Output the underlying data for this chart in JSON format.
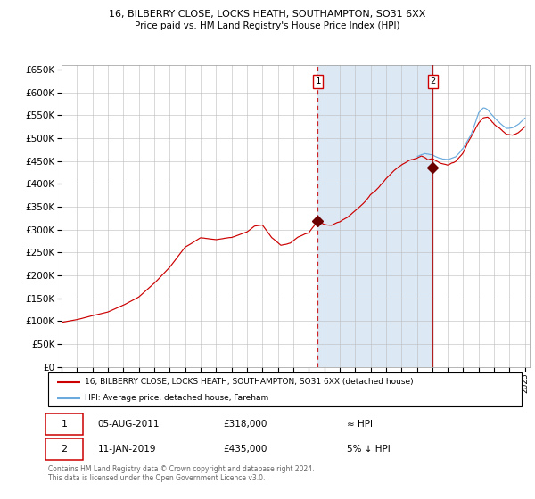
{
  "title_line1": "16, BILBERRY CLOSE, LOCKS HEATH, SOUTHAMPTON, SO31 6XX",
  "title_line2": "Price paid vs. HM Land Registry's House Price Index (HPI)",
  "legend_label1": "16, BILBERRY CLOSE, LOCKS HEATH, SOUTHAMPTON, SO31 6XX (detached house)",
  "legend_label2": "HPI: Average price, detached house, Fareham",
  "annotation1_date": "05-AUG-2011",
  "annotation1_price": "£318,000",
  "annotation1_hpi": "≈ HPI",
  "annotation2_date": "11-JAN-2019",
  "annotation2_price": "£435,000",
  "annotation2_hpi": "5% ↓ HPI",
  "footer_line1": "Contains HM Land Registry data © Crown copyright and database right 2024.",
  "footer_line2": "This data is licensed under the Open Government Licence v3.0.",
  "red_color": "#cc0000",
  "blue_color": "#6aaadd",
  "bg_shaded": "#dce9f5",
  "grid_color": "#bbbbbb",
  "ylim_min": 0,
  "ylim_max": 660000,
  "sale1_date_num": 2011.59,
  "sale1_price": 318000,
  "sale2_date_num": 2019.03,
  "sale2_price": 435000,
  "hpi_anchors_x": [
    1995.0,
    1996.0,
    1997.0,
    1998.0,
    1999.0,
    2000.0,
    2001.0,
    2002.0,
    2003.0,
    2004.0,
    2005.0,
    2006.0,
    2007.0,
    2007.5,
    2008.0,
    2008.6,
    2009.2,
    2009.8,
    2010.3,
    2011.0,
    2011.59,
    2012.0,
    2012.5,
    2013.0,
    2013.5,
    2014.0,
    2014.5,
    2015.0,
    2015.5,
    2016.0,
    2016.5,
    2017.0,
    2017.5,
    2018.0,
    2018.3,
    2018.7,
    2019.03,
    2019.5,
    2020.0,
    2020.5,
    2021.0,
    2021.3,
    2021.7,
    2022.0,
    2022.3,
    2022.6,
    2023.0,
    2023.4,
    2023.8,
    2024.2,
    2024.6,
    2025.0
  ],
  "hpi_anchors_y": [
    97000,
    103000,
    112000,
    120000,
    135000,
    153000,
    183000,
    218000,
    262000,
    282000,
    278000,
    283000,
    295000,
    308000,
    310000,
    282000,
    265000,
    270000,
    283000,
    292000,
    318000,
    310000,
    308000,
    315000,
    325000,
    340000,
    355000,
    375000,
    390000,
    410000,
    428000,
    442000,
    453000,
    458000,
    463000,
    455000,
    457000,
    447000,
    443000,
    450000,
    468000,
    490000,
    515000,
    535000,
    545000,
    547000,
    532000,
    522000,
    510000,
    508000,
    515000,
    527000
  ],
  "blue_anchors_x": [
    2018.0,
    2018.5,
    2019.0,
    2019.5,
    2020.0,
    2020.5,
    2021.0,
    2021.5,
    2022.0,
    2022.3,
    2022.6,
    2023.0,
    2023.4,
    2023.8,
    2024.2,
    2024.6,
    2025.0
  ],
  "blue_anchors_y": [
    460000,
    465000,
    463000,
    455000,
    452000,
    458000,
    478000,
    505000,
    553000,
    563000,
    558000,
    542000,
    528000,
    518000,
    520000,
    527000,
    540000
  ]
}
